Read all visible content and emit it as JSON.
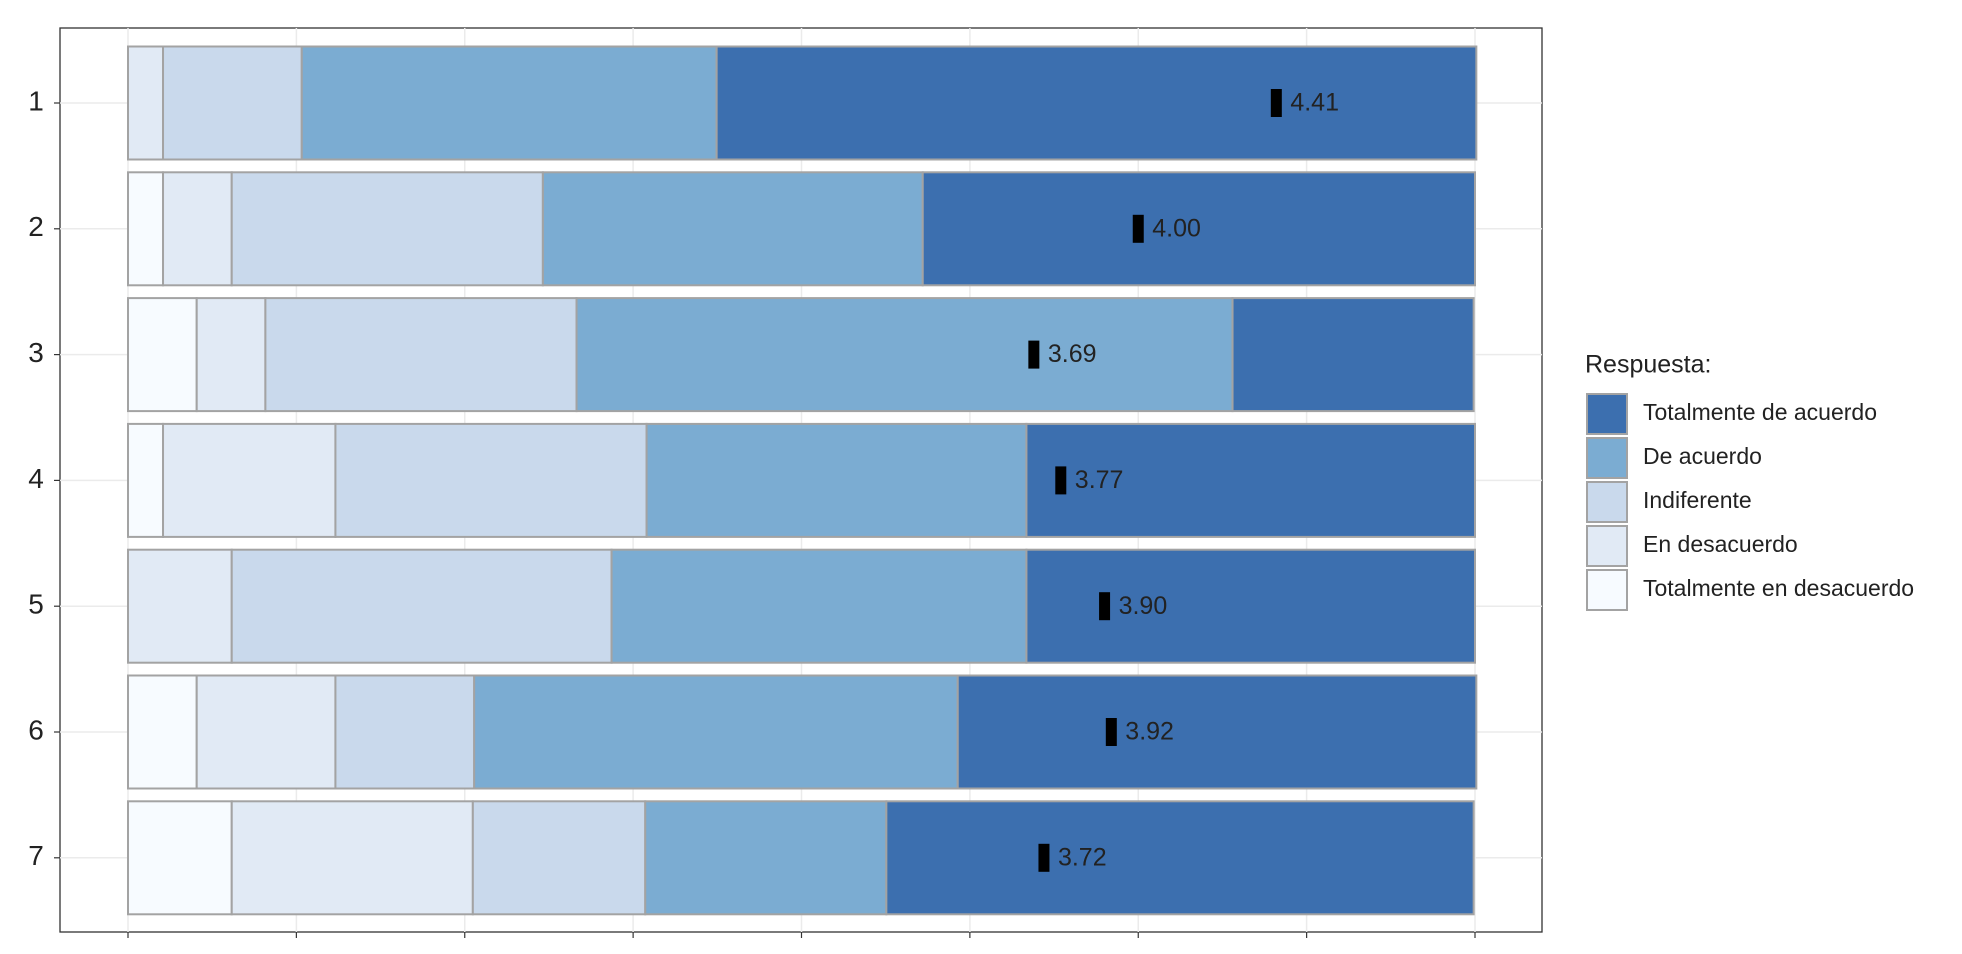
{
  "chart_data": {
    "type": "stacked_bar_horizontal",
    "categories": [
      "1",
      "2",
      "3",
      "4",
      "5",
      "6",
      "7"
    ],
    "series": [
      {
        "name": "Totalmente en desacuerdo",
        "color": "#f7fbff",
        "values": [
          0,
          2.6,
          5.1,
          2.6,
          0,
          5.1,
          7.7
        ]
      },
      {
        "name": "En desacuerdo",
        "color": "#e1eaf5",
        "values": [
          2.6,
          5.1,
          5.1,
          12.8,
          7.7,
          10.3,
          17.9
        ]
      },
      {
        "name": "Indiferente",
        "color": "#c9d9ec",
        "values": [
          10.3,
          23.1,
          23.1,
          23.1,
          28.2,
          10.3,
          12.8
        ]
      },
      {
        "name": "De acuerdo",
        "color": "#7bacd2",
        "values": [
          30.8,
          28.2,
          48.7,
          28.2,
          30.8,
          35.9,
          17.9
        ]
      },
      {
        "name": "Totalmente de acuerdo",
        "color": "#3c6faf",
        "values": [
          56.4,
          41.0,
          17.9,
          33.3,
          33.3,
          38.5,
          43.6
        ]
      }
    ],
    "means": [
      4.41,
      4.0,
      3.69,
      3.77,
      3.9,
      3.92,
      3.72
    ],
    "means_value_labels": [
      "4.41",
      "4.00",
      "3.69",
      "3.77",
      "3.90",
      "3.92",
      "3.72"
    ],
    "legend_title": "Respuesta:",
    "legend_position": "right",
    "xlim": [
      0,
      100
    ],
    "xticks": [
      0,
      12.5,
      25,
      37.5,
      50,
      62.5,
      75,
      87.5,
      100
    ],
    "grid": true
  }
}
